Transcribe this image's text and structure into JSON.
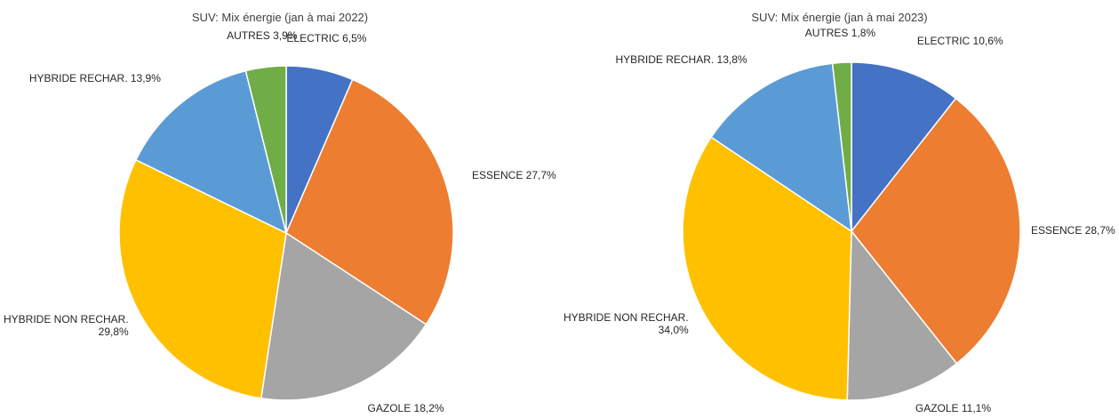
{
  "chart_data": [
    {
      "type": "pie",
      "title": "SUV: Mix énergie (jan à mai 2022)",
      "categories": [
        "ELECTRIC",
        "ESSENCE",
        "GAZOLE",
        "HYBRIDE NON RECHAR.",
        "HYBRIDE RECHAR.",
        "AUTRES"
      ],
      "values": [
        6.5,
        27.7,
        18.2,
        29.8,
        13.9,
        3.9
      ],
      "labels": [
        "ELECTRIC 6,5%",
        "ESSENCE 27,7%",
        "GAZOLE 18,2%",
        "HYBRIDE NON RECHAR.|29,8%",
        "HYBRIDE RECHAR. 13,9%",
        "AUTRES 3,9%"
      ],
      "colors": [
        "#4472C4",
        "#ED7D31",
        "#A5A5A5",
        "#FFC000",
        "#5B9BD5",
        "#70AD47"
      ],
      "legend": "none",
      "data_labels": "outside-end"
    },
    {
      "type": "pie",
      "title": "SUV: Mix énergie (jan à mai 2023)",
      "categories": [
        "ELECTRIC",
        "ESSENCE",
        "GAZOLE",
        "HYBRIDE NON RECHAR.",
        "HYBRIDE RECHAR.",
        "AUTRES"
      ],
      "values": [
        10.6,
        28.7,
        11.1,
        34.0,
        13.8,
        1.8
      ],
      "labels": [
        "ELECTRIC 10,6%",
        "ESSENCE 28,7%",
        "GAZOLE 11,1%",
        "HYBRIDE NON RECHAR.|34,0%",
        "HYBRIDE RECHAR. 13,8%",
        "AUTRES 1,8%"
      ],
      "colors": [
        "#4472C4",
        "#ED7D31",
        "#A5A5A5",
        "#FFC000",
        "#5B9BD5",
        "#70AD47"
      ],
      "legend": "none",
      "data_labels": "outside-end"
    }
  ]
}
